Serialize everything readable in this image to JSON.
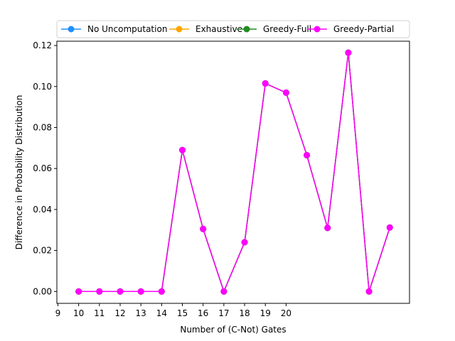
{
  "chart_data": {
    "type": "line",
    "title": "",
    "xlabel": "Number of (C-Not) Gates",
    "ylabel": "Difference in Probability Distribution",
    "xlim": [
      8.95,
      25.95
    ],
    "ylim": [
      -0.0058,
      0.1221
    ],
    "x_ticks": [
      9,
      10,
      11,
      12,
      13,
      14,
      15,
      16,
      17,
      18,
      19,
      20
    ],
    "y_ticks": [
      0.0,
      0.02,
      0.04,
      0.06,
      0.08,
      0.1,
      0.12
    ],
    "y_tick_labels": [
      "0.00",
      "0.02",
      "0.04",
      "0.06",
      "0.08",
      "0.10",
      "0.12"
    ],
    "grid": false,
    "legend_position": "top-center, above plot",
    "x": [
      10,
      11,
      12,
      13,
      14,
      15,
      16,
      17,
      18,
      19,
      20,
      21,
      22,
      23,
      24,
      25
    ],
    "series": [
      {
        "name": "No Uncomputation",
        "color": "#1e90ff",
        "values": [
          0.0,
          0.0,
          0.0,
          0.0,
          0.0,
          0.069,
          0.0305,
          0.0,
          0.024,
          0.1015,
          0.097,
          0.0665,
          0.031,
          0.1165,
          0.0,
          0.0312
        ]
      },
      {
        "name": "Exhaustive",
        "color": "#ffa500",
        "values": [
          0.0,
          0.0,
          0.0,
          0.0,
          0.0,
          0.069,
          0.0305,
          0.0,
          0.024,
          0.1015,
          0.097,
          0.0665,
          0.031,
          0.1165,
          0.0,
          0.0312
        ]
      },
      {
        "name": "Greedy-Full",
        "color": "#228b22",
        "values": [
          0.0,
          0.0,
          0.0,
          0.0,
          0.0,
          0.069,
          0.0305,
          0.0,
          0.024,
          0.1015,
          0.097,
          0.0665,
          0.031,
          0.1165,
          0.0,
          0.0312
        ]
      },
      {
        "name": "Greedy-Partial",
        "color": "#ff00ff",
        "values": [
          0.0,
          0.0,
          0.0,
          0.0,
          0.0,
          0.069,
          0.0305,
          0.0,
          0.024,
          0.1015,
          0.097,
          0.0665,
          0.031,
          0.1165,
          0.0,
          0.0312
        ]
      }
    ]
  }
}
